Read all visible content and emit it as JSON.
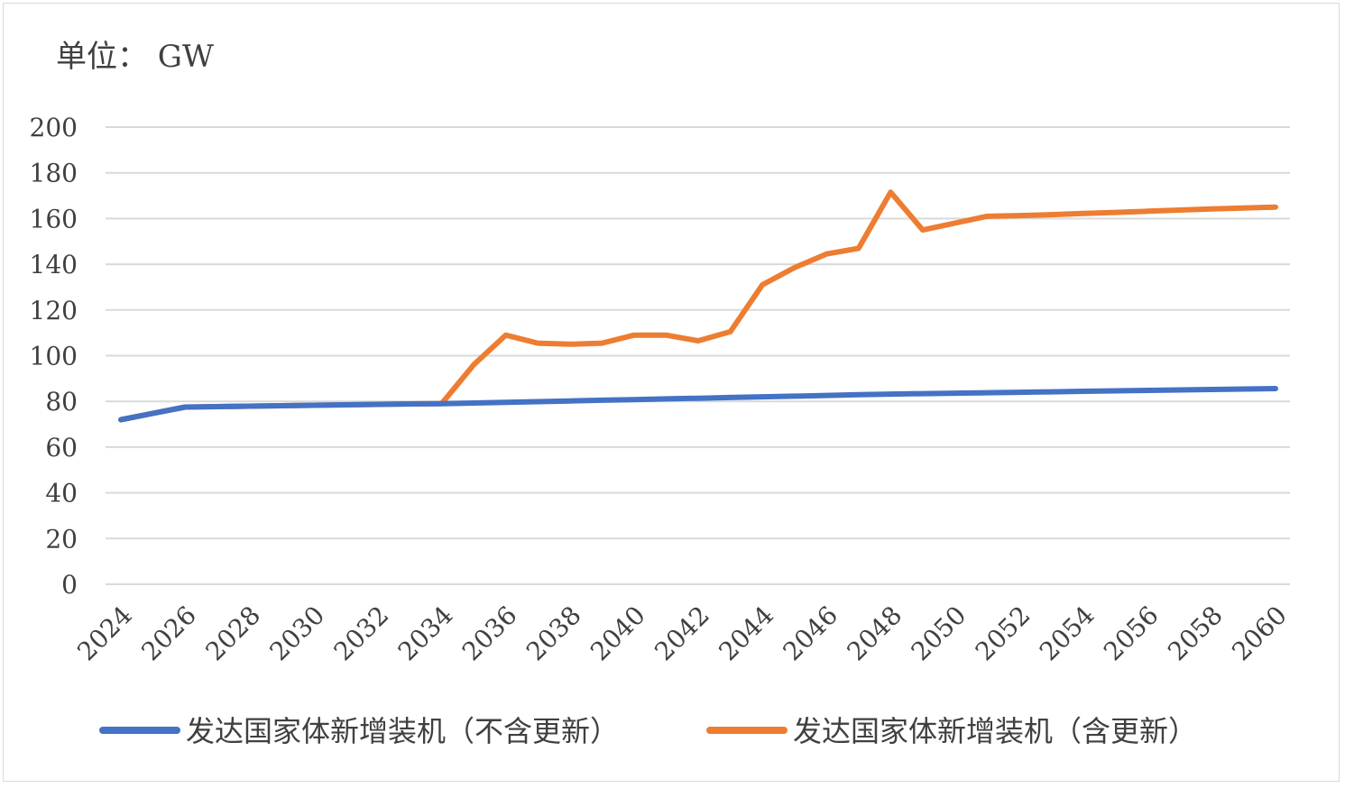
{
  "chart_data": {
    "type": "line",
    "unit_label": "单位： GW",
    "ylim": [
      0,
      200
    ],
    "y_ticks": [
      0,
      20,
      40,
      60,
      80,
      100,
      120,
      140,
      160,
      180,
      200
    ],
    "x": [
      2024,
      2025,
      2026,
      2027,
      2028,
      2029,
      2030,
      2031,
      2032,
      2033,
      2034,
      2035,
      2036,
      2037,
      2038,
      2039,
      2040,
      2041,
      2042,
      2043,
      2044,
      2045,
      2046,
      2047,
      2048,
      2049,
      2050,
      2051,
      2052,
      2053,
      2054,
      2055,
      2056,
      2057,
      2058,
      2059,
      2060
    ],
    "x_tick_labels": [
      "2024",
      "2026",
      "2028",
      "2030",
      "2032",
      "2034",
      "2036",
      "2038",
      "2040",
      "2042",
      "2044",
      "2046",
      "2048",
      "2050",
      "2052",
      "2054",
      "2056",
      "2058",
      "2060"
    ],
    "grid": true,
    "legend_position": "bottom",
    "series": [
      {
        "name": "发达国家体新增装机（不含更新）",
        "color": "#4472c4",
        "values": [
          72,
          74.8,
          77.5,
          77.7,
          77.9,
          78.1,
          78.3,
          78.5,
          78.7,
          78.9,
          79,
          79.3,
          79.6,
          79.9,
          80.2,
          80.5,
          80.8,
          81.1,
          81.4,
          81.7,
          82,
          82.3,
          82.6,
          82.9,
          83.2,
          83.4,
          83.6,
          83.8,
          84,
          84.2,
          84.4,
          84.6,
          84.8,
          85,
          85.2,
          85.4,
          85.6
        ]
      },
      {
        "name": "发达国家体新增装机（含更新）",
        "color": "#ed7d31",
        "values": [
          72,
          74.8,
          77.5,
          77.7,
          77.9,
          78.1,
          78.3,
          78.5,
          78.7,
          78.9,
          79,
          96,
          109,
          105.5,
          105,
          105.5,
          109,
          109,
          106.5,
          110.5,
          131,
          138.5,
          144.5,
          147,
          171.5,
          155,
          158,
          161,
          161.3,
          161.7,
          162.2,
          162.7,
          163.2,
          163.7,
          164.2,
          164.6,
          165
        ]
      }
    ]
  }
}
